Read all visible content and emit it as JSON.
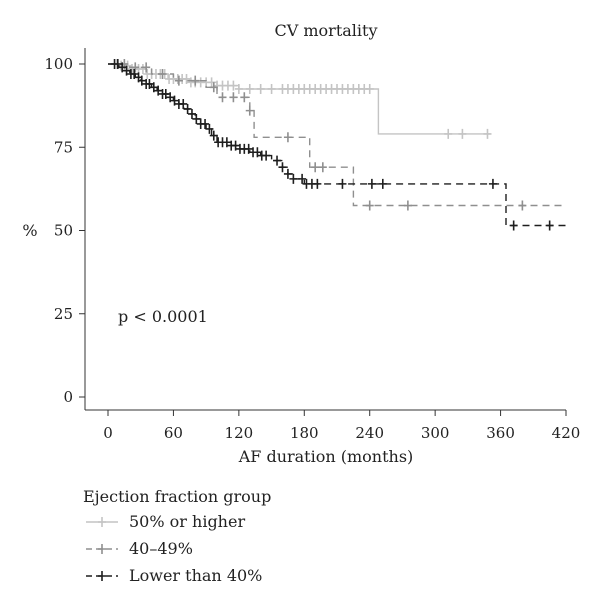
{
  "chart_data": {
    "type": "line",
    "subtype": "kaplan-meier step",
    "title": "CV mortality",
    "xlabel": "AF duration (months)",
    "ylabel": "%",
    "xlim": [
      0,
      420
    ],
    "ylim": [
      0,
      100
    ],
    "xticks": [
      0,
      60,
      120,
      180,
      240,
      300,
      360,
      420
    ],
    "yticks": [
      0,
      25,
      50,
      75,
      100
    ],
    "annotation": "p < 0.0001",
    "legend_title": "Ejection fraction group",
    "legend_position": "below",
    "grid": false,
    "series": [
      {
        "name": "50% or higher",
        "color": "#c4c4c4",
        "dash": "solid",
        "steps": [
          [
            0,
            100
          ],
          [
            10,
            99.5
          ],
          [
            20,
            98.5
          ],
          [
            35,
            97
          ],
          [
            55,
            95.5
          ],
          [
            75,
            94.5
          ],
          [
            100,
            93.5
          ],
          [
            120,
            92.5
          ],
          [
            248,
            92.5
          ],
          [
            248,
            79
          ],
          [
            350,
            79
          ]
        ],
        "censor_x": [
          8,
          12,
          15,
          18,
          22,
          25,
          28,
          32,
          36,
          40,
          44,
          48,
          52,
          56,
          60,
          64,
          68,
          72,
          76,
          80,
          85,
          90,
          95,
          100,
          105,
          110,
          115,
          120,
          130,
          140,
          150,
          160,
          165,
          170,
          175,
          180,
          185,
          190,
          195,
          200,
          205,
          210,
          215,
          220,
          225,
          230,
          235,
          240,
          312,
          325,
          348
        ]
      },
      {
        "name": "40–49%",
        "color": "#8f8f8f",
        "dash": "dashed",
        "steps": [
          [
            0,
            100
          ],
          [
            20,
            99
          ],
          [
            40,
            97
          ],
          [
            60,
            95
          ],
          [
            90,
            93
          ],
          [
            100,
            90
          ],
          [
            130,
            86
          ],
          [
            134,
            86
          ],
          [
            134,
            78
          ],
          [
            185,
            78
          ],
          [
            185,
            69
          ],
          [
            225,
            69
          ],
          [
            225,
            57.5
          ],
          [
            420,
            57.5
          ]
        ],
        "censor_x": [
          15,
          25,
          35,
          50,
          65,
          80,
          97,
          105,
          115,
          125,
          130,
          165,
          190,
          197,
          240,
          275,
          380
        ]
      },
      {
        "name": "Lower than 40%",
        "color": "#1e1e1e",
        "dash": "dashed",
        "steps": [
          [
            0,
            100
          ],
          [
            5,
            100
          ],
          [
            10,
            99
          ],
          [
            15,
            98
          ],
          [
            20,
            97
          ],
          [
            25,
            96
          ],
          [
            30,
            95
          ],
          [
            35,
            94
          ],
          [
            40,
            93
          ],
          [
            45,
            92
          ],
          [
            50,
            91
          ],
          [
            55,
            90
          ],
          [
            60,
            89
          ],
          [
            65,
            88
          ],
          [
            70,
            86.5
          ],
          [
            75,
            85
          ],
          [
            80,
            83.5
          ],
          [
            85,
            82
          ],
          [
            90,
            80.5
          ],
          [
            95,
            78.5
          ],
          [
            100,
            76.5
          ],
          [
            110,
            75.5
          ],
          [
            120,
            74.5
          ],
          [
            130,
            73.5
          ],
          [
            140,
            72.5
          ],
          [
            150,
            71
          ],
          [
            160,
            69
          ],
          [
            165,
            67
          ],
          [
            170,
            65.5
          ],
          [
            180,
            64
          ],
          [
            365,
            64
          ],
          [
            365,
            51.5
          ],
          [
            420,
            51.5
          ]
        ],
        "censor_x": [
          6,
          9,
          13,
          17,
          21,
          24,
          28,
          31,
          35,
          38,
          42,
          46,
          50,
          53,
          57,
          61,
          65,
          69,
          73,
          77,
          81,
          85,
          89,
          93,
          97,
          101,
          105,
          109,
          113,
          117,
          121,
          125,
          129,
          133,
          137,
          141,
          145,
          155,
          160,
          165,
          170,
          178,
          182,
          187,
          192,
          215,
          242,
          252,
          353,
          372,
          405
        ]
      }
    ]
  }
}
